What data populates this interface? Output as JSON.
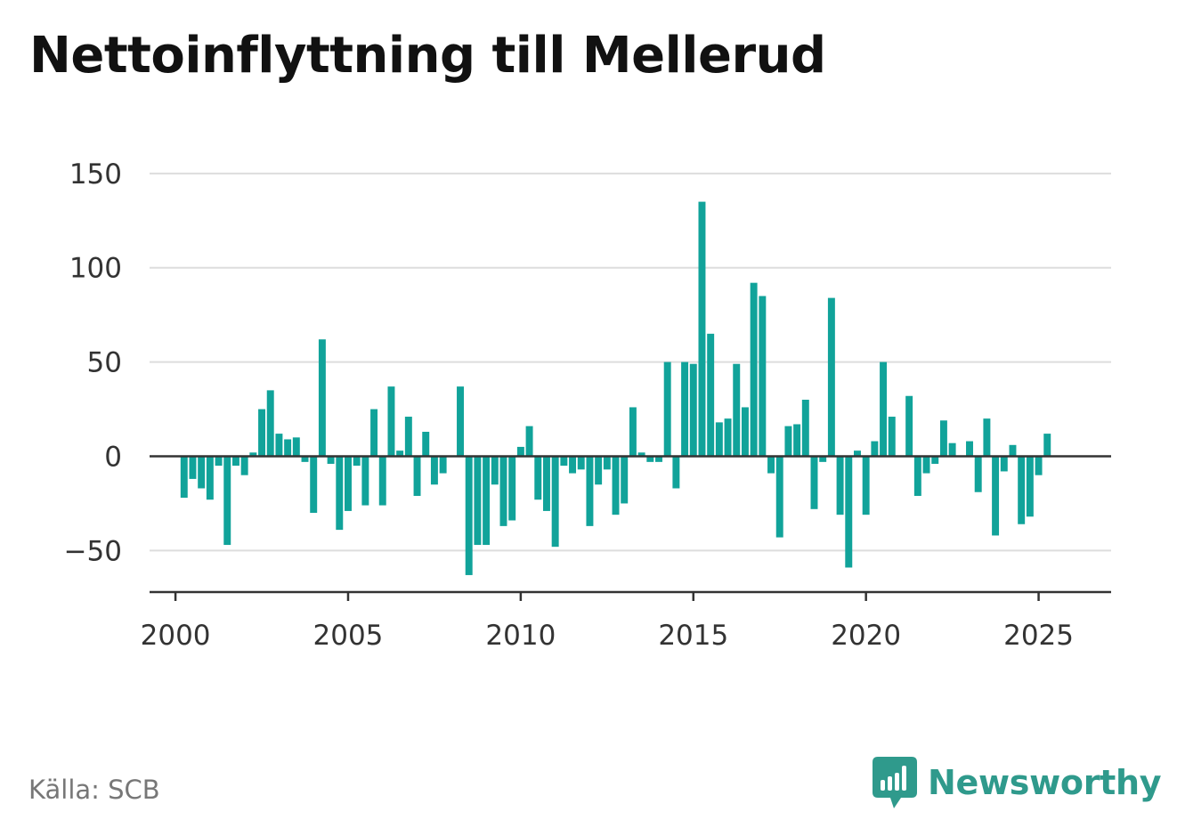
{
  "title": "Nettoinflyttning till Mellerud",
  "source": "Källa: SCB",
  "brand": "Newsworthy",
  "colors": {
    "bar": "#11a39a",
    "grid": "#dddddd",
    "axis": "#333333",
    "brand": "#2f9a8c"
  },
  "chart_data": {
    "type": "bar",
    "title": "Nettoinflyttning till Mellerud",
    "xlabel": "",
    "ylabel": "",
    "ylim": [
      -72,
      157
    ],
    "xlim": [
      1999.25,
      2027.1
    ],
    "yticks": [
      150,
      100,
      50,
      0,
      -50
    ],
    "ytick_labels": [
      "150",
      "100",
      "50",
      "0",
      "−50"
    ],
    "xticks": [
      2000,
      2005,
      2010,
      2015,
      2020,
      2025
    ],
    "xtick_labels": [
      "2000",
      "2005",
      "2010",
      "2015",
      "2020",
      "2025"
    ],
    "grid": true,
    "series": [
      {
        "start": 2000.0,
        "step": 0.25,
        "values": [
          0,
          -22,
          -12,
          -17,
          -23,
          -5,
          -47,
          -5,
          -10,
          2,
          25,
          35,
          12,
          9,
          10,
          -3,
          -30,
          62,
          -4,
          -39,
          -29,
          -5,
          -26,
          25,
          -26,
          37,
          3,
          21,
          -21,
          13,
          -15,
          -9,
          0,
          37,
          -63,
          -47,
          -47,
          -15,
          -37,
          -34,
          5,
          16,
          -23,
          -29,
          -48,
          -5,
          -9,
          -7,
          -37,
          -15,
          -7,
          -31,
          -25,
          26,
          2,
          -3,
          -3,
          50,
          -17,
          50,
          49,
          135,
          65,
          18,
          20,
          49,
          26,
          92,
          85,
          -9,
          -43,
          16,
          17,
          30,
          -28,
          -3,
          84,
          -31,
          -59,
          3,
          -31,
          8,
          50,
          21,
          0,
          32,
          -21,
          -9,
          -4,
          19,
          7,
          0,
          8,
          -19,
          20,
          -42,
          -8,
          6,
          -36,
          -32,
          -10,
          12
        ]
      }
    ]
  }
}
